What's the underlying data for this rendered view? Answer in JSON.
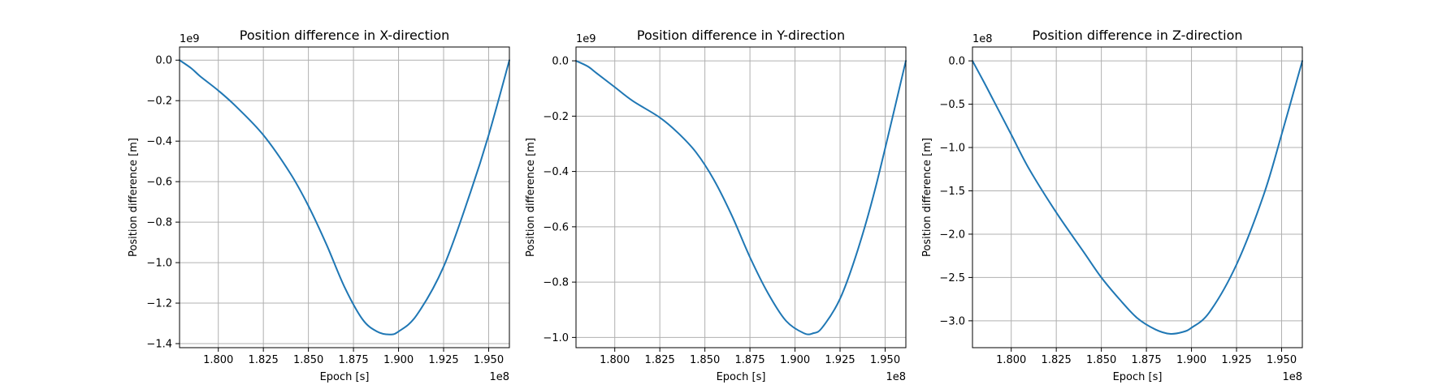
{
  "chart_data": [
    {
      "type": "line",
      "title": "Position difference in X-direction",
      "xlabel": "Epoch [s]",
      "ylabel": "Position difference [m]",
      "x_offset_label": "1e8",
      "y_offset_label": "1e9",
      "xlim": [
        1.7785,
        1.9615
      ],
      "ylim": [
        -1.42,
        0.065
      ],
      "xticks": [
        1.8,
        1.825,
        1.85,
        1.875,
        1.9,
        1.925,
        1.95
      ],
      "xtick_labels": [
        "1.800",
        "1.825",
        "1.850",
        "1.875",
        "1.900",
        "1.925",
        "1.950"
      ],
      "yticks": [
        0.0,
        -0.2,
        -0.4,
        -0.6,
        -0.8,
        -1.0,
        -1.2,
        -1.4
      ],
      "ytick_labels": [
        "0.0",
        "−0.2",
        "−0.4",
        "−0.6",
        "−0.8",
        "−1.0",
        "−1.2",
        "−1.4"
      ],
      "grid": true,
      "color": "#1f77b4",
      "series": [
        {
          "x": [
            1.7785,
            1.785,
            1.79,
            1.8,
            1.81,
            1.825,
            1.84,
            1.85,
            1.86,
            1.87,
            1.88,
            1.888,
            1.895,
            1.9,
            1.91,
            1.925,
            1.94,
            1.95,
            1.9615
          ],
          "y": [
            0.0,
            -0.04,
            -0.08,
            -0.15,
            -0.23,
            -0.37,
            -0.56,
            -0.72,
            -0.91,
            -1.12,
            -1.28,
            -1.34,
            -1.355,
            -1.34,
            -1.26,
            -1.02,
            -0.65,
            -0.37,
            0.0
          ]
        }
      ]
    },
    {
      "type": "line",
      "title": "Position difference in Y-direction",
      "xlabel": "Epoch [s]",
      "ylabel": "Position difference [m]",
      "x_offset_label": "1e8",
      "y_offset_label": "1e9",
      "xlim": [
        1.7785,
        1.9615
      ],
      "ylim": [
        -1.037,
        0.05
      ],
      "xticks": [
        1.8,
        1.825,
        1.85,
        1.875,
        1.9,
        1.925,
        1.95
      ],
      "xtick_labels": [
        "1.800",
        "1.825",
        "1.850",
        "1.875",
        "1.900",
        "1.925",
        "1.950"
      ],
      "yticks": [
        0.0,
        -0.2,
        -0.4,
        -0.6,
        -0.8,
        -1.0
      ],
      "ytick_labels": [
        "0.0",
        "−0.2",
        "−0.4",
        "−0.6",
        "−0.8",
        "−1.0"
      ],
      "grid": true,
      "color": "#1f77b4",
      "series": [
        {
          "x": [
            1.7785,
            1.785,
            1.79,
            1.8,
            1.81,
            1.825,
            1.835,
            1.845,
            1.855,
            1.865,
            1.875,
            1.885,
            1.895,
            1.905,
            1.91,
            1.915,
            1.925,
            1.935,
            1.945,
            1.9615
          ],
          "y": [
            0.0,
            -0.02,
            -0.045,
            -0.095,
            -0.145,
            -0.205,
            -0.26,
            -0.33,
            -0.43,
            -0.56,
            -0.71,
            -0.84,
            -0.94,
            -0.985,
            -0.985,
            -0.965,
            -0.86,
            -0.68,
            -0.45,
            0.0
          ]
        }
      ]
    },
    {
      "type": "line",
      "title": "Position difference in Z-direction",
      "xlabel": "Epoch [s]",
      "ylabel": "Position difference [m]",
      "x_offset_label": "1e8",
      "y_offset_label": "1e8",
      "xlim": [
        1.7785,
        1.9615
      ],
      "ylim": [
        -3.31,
        0.16
      ],
      "xticks": [
        1.8,
        1.825,
        1.85,
        1.875,
        1.9,
        1.925,
        1.95
      ],
      "xtick_labels": [
        "1.800",
        "1.825",
        "1.850",
        "1.875",
        "1.900",
        "1.925",
        "1.950"
      ],
      "yticks": [
        0.0,
        -0.5,
        -1.0,
        -1.5,
        -2.0,
        -2.5,
        -3.0
      ],
      "ytick_labels": [
        "0.0",
        "−0.5",
        "−1.0",
        "−1.5",
        "−2.0",
        "−2.5",
        "−3.0"
      ],
      "grid": true,
      "color": "#1f77b4",
      "series": [
        {
          "x": [
            1.7785,
            1.785,
            1.79,
            1.8,
            1.81,
            1.825,
            1.84,
            1.85,
            1.86,
            1.87,
            1.88,
            1.888,
            1.895,
            1.9,
            1.91,
            1.925,
            1.94,
            1.95,
            1.9615
          ],
          "y": [
            0.0,
            -0.25,
            -0.45,
            -0.85,
            -1.25,
            -1.75,
            -2.2,
            -2.5,
            -2.75,
            -2.97,
            -3.1,
            -3.15,
            -3.13,
            -3.08,
            -2.9,
            -2.35,
            -1.55,
            -0.85,
            0.0
          ]
        }
      ]
    }
  ]
}
